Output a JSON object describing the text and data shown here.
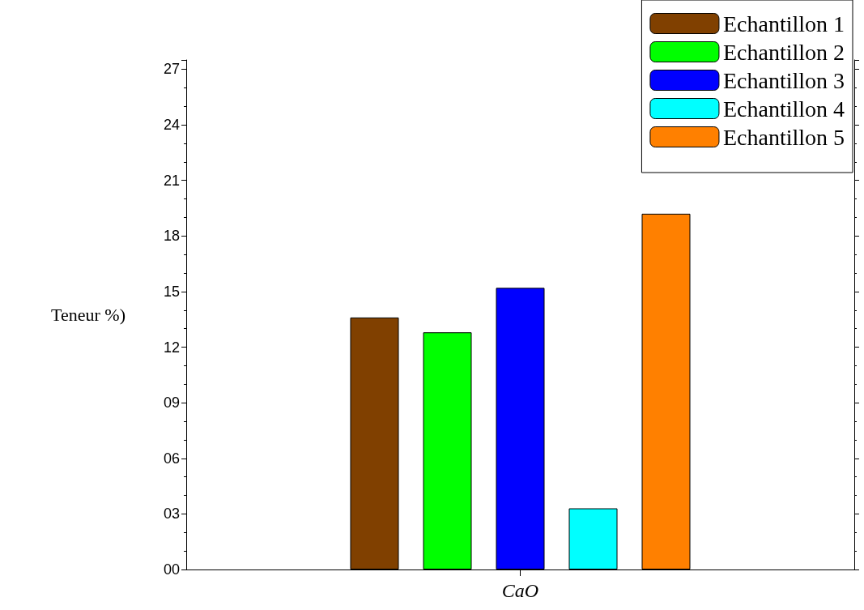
{
  "chart_data": {
    "type": "bar",
    "ylabel": "Teneur %)",
    "categories": [
      "CaO"
    ],
    "series": [
      {
        "name": "Echantillon 1",
        "color": "#804000",
        "values": [
          13.6
        ]
      },
      {
        "name": "Echantillon 2",
        "color": "#00ff00",
        "values": [
          12.8
        ]
      },
      {
        "name": "Echantillon 3",
        "color": "#0000ff",
        "values": [
          15.2
        ]
      },
      {
        "name": "Echantillon 4",
        "color": "#00ffff",
        "values": [
          3.3
        ]
      },
      {
        "name": "Echantillon 5",
        "color": "#ff8000",
        "values": [
          19.2
        ]
      }
    ],
    "ylim": [
      0,
      27.5
    ],
    "yticks": [
      {
        "value": 0,
        "label": "00"
      },
      {
        "value": 3,
        "label": "03"
      },
      {
        "value": 6,
        "label": "06"
      },
      {
        "value": 9,
        "label": "09"
      },
      12,
      15,
      18,
      21,
      24,
      27
    ],
    "grid": false,
    "legend": "top right"
  }
}
